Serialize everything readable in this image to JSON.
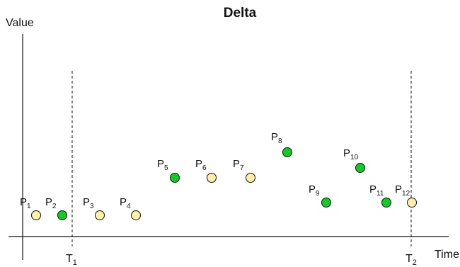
{
  "title": "Delta",
  "y_axis_label": "Value",
  "x_axis_label": "Time",
  "colors": {
    "changed": "#11cc22",
    "unchanged": "#fff0a8",
    "outline": "#111111",
    "axis": "#111111"
  },
  "markers": [
    {
      "main": "T",
      "sub": "1"
    },
    {
      "main": "T",
      "sub": "2"
    }
  ],
  "points": [
    {
      "main": "P",
      "sub": "1",
      "state": "unchanged"
    },
    {
      "main": "P",
      "sub": "2",
      "state": "changed"
    },
    {
      "main": "P",
      "sub": "3",
      "state": "unchanged"
    },
    {
      "main": "P",
      "sub": "4",
      "state": "unchanged"
    },
    {
      "main": "P",
      "sub": "5",
      "state": "changed"
    },
    {
      "main": "P",
      "sub": "6",
      "state": "unchanged"
    },
    {
      "main": "P",
      "sub": "7",
      "state": "unchanged"
    },
    {
      "main": "P",
      "sub": "8",
      "state": "changed"
    },
    {
      "main": "P",
      "sub": "9",
      "state": "changed"
    },
    {
      "main": "P",
      "sub": "10",
      "state": "changed"
    },
    {
      "main": "P",
      "sub": "11",
      "state": "changed"
    },
    {
      "main": "P",
      "sub": "12",
      "state": "unchanged"
    }
  ]
}
